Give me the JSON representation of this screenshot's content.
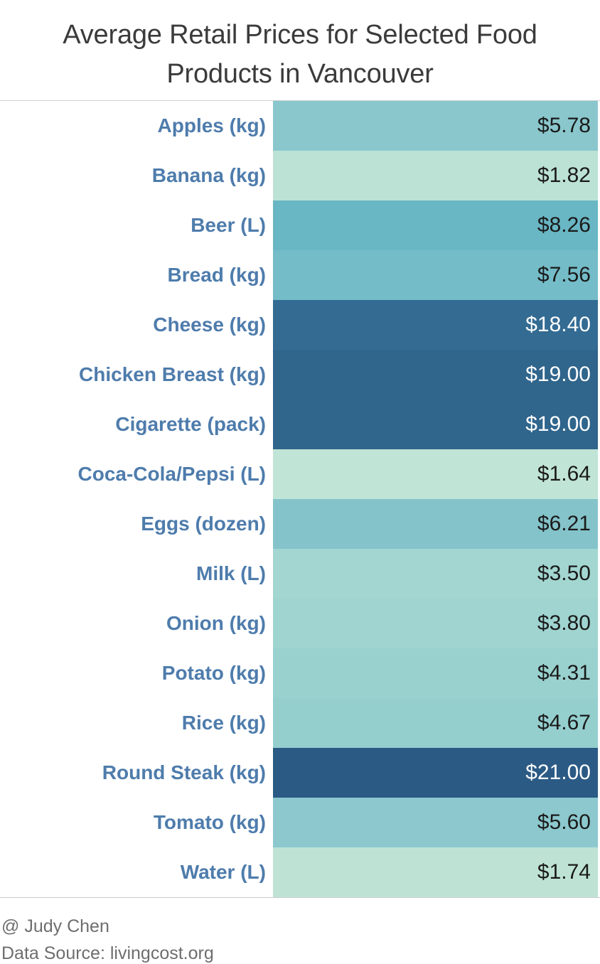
{
  "title": "Average Retail Prices for Selected Food Products in Vancouver",
  "footer": {
    "author": "@ Judy Chen",
    "source": "Data Source: livingcost.org"
  },
  "colors": {
    "title_text": "#3b3b3b",
    "label_text": "#4e7cac",
    "footer_text": "#6e6e6e",
    "divider": "#cfcfcf",
    "background": "#ffffff"
  },
  "chart_data": {
    "type": "heatmap",
    "title": "Average Retail Prices for Selected Food Products in Vancouver",
    "xlabel": "",
    "ylabel": "",
    "legend": "none",
    "grid": "off",
    "value_format": "$#.00",
    "color_scale": {
      "description": "sequential blue-teal, light mint = low price, dark navy = high price",
      "min_value": 1.64,
      "max_value": 21.0,
      "min_color": "#c0e4d6",
      "max_color": "#2b5a85"
    },
    "categories": [
      "Apples (kg)",
      "Banana (kg)",
      "Beer (L)",
      "Bread (kg)",
      "Cheese (kg)",
      "Chicken Breast (kg)",
      "Cigarette (pack)",
      "Coca-Cola/Pepsi (L)",
      "Eggs (dozen)",
      "Milk (L)",
      "Onion (kg)",
      "Potato (kg)",
      "Rice (kg)",
      "Round Steak (kg)",
      "Tomato (kg)",
      "Water (L)"
    ],
    "values": [
      5.78,
      1.82,
      8.26,
      7.56,
      18.4,
      19.0,
      19.0,
      1.64,
      6.21,
      3.5,
      3.8,
      4.31,
      4.67,
      21.0,
      5.6,
      1.74
    ],
    "rows": [
      {
        "label": "Apples (kg)",
        "value": 5.78,
        "display": "$5.78",
        "color": "#8ac7cd",
        "text_color": "#1a1a1a"
      },
      {
        "label": "Banana (kg)",
        "value": 1.82,
        "display": "$1.82",
        "color": "#bce2d5",
        "text_color": "#1a1a1a"
      },
      {
        "label": "Beer (L)",
        "value": 8.26,
        "display": "$8.26",
        "color": "#69b6c4",
        "text_color": "#1a1a1a"
      },
      {
        "label": "Bread (kg)",
        "value": 7.56,
        "display": "$7.56",
        "color": "#74bcc8",
        "text_color": "#1a1a1a"
      },
      {
        "label": "Cheese (kg)",
        "value": 18.4,
        "display": "$18.40",
        "color": "#336b93",
        "text_color": "#ffffff"
      },
      {
        "label": "Chicken Breast (kg)",
        "value": 19.0,
        "display": "$19.00",
        "color": "#30658c",
        "text_color": "#ffffff"
      },
      {
        "label": "Cigarette (pack)",
        "value": 19.0,
        "display": "$19.00",
        "color": "#30658c",
        "text_color": "#ffffff"
      },
      {
        "label": "Coca-Cola/Pepsi (L)",
        "value": 1.64,
        "display": "$1.64",
        "color": "#c0e4d6",
        "text_color": "#1a1a1a"
      },
      {
        "label": "Eggs (dozen)",
        "value": 6.21,
        "display": "$6.21",
        "color": "#84c3ca",
        "text_color": "#1a1a1a"
      },
      {
        "label": "Milk (L)",
        "value": 3.5,
        "display": "$3.50",
        "color": "#a3d6d1",
        "text_color": "#1a1a1a"
      },
      {
        "label": "Onion (kg)",
        "value": 3.8,
        "display": "$3.80",
        "color": "#9fd4d0",
        "text_color": "#1a1a1a"
      },
      {
        "label": "Potato (kg)",
        "value": 4.31,
        "display": "$4.31",
        "color": "#99d1cf",
        "text_color": "#1a1a1a"
      },
      {
        "label": "Rice (kg)",
        "value": 4.67,
        "display": "$4.67",
        "color": "#94cfce",
        "text_color": "#1a1a1a"
      },
      {
        "label": "Round Steak (kg)",
        "value": 21.0,
        "display": "$21.00",
        "color": "#2b5a85",
        "text_color": "#ffffff"
      },
      {
        "label": "Tomato (kg)",
        "value": 5.6,
        "display": "$5.60",
        "color": "#8cc8ce",
        "text_color": "#1a1a1a"
      },
      {
        "label": "Water (L)",
        "value": 1.74,
        "display": "$1.74",
        "color": "#bee3d5",
        "text_color": "#1a1a1a"
      }
    ]
  }
}
